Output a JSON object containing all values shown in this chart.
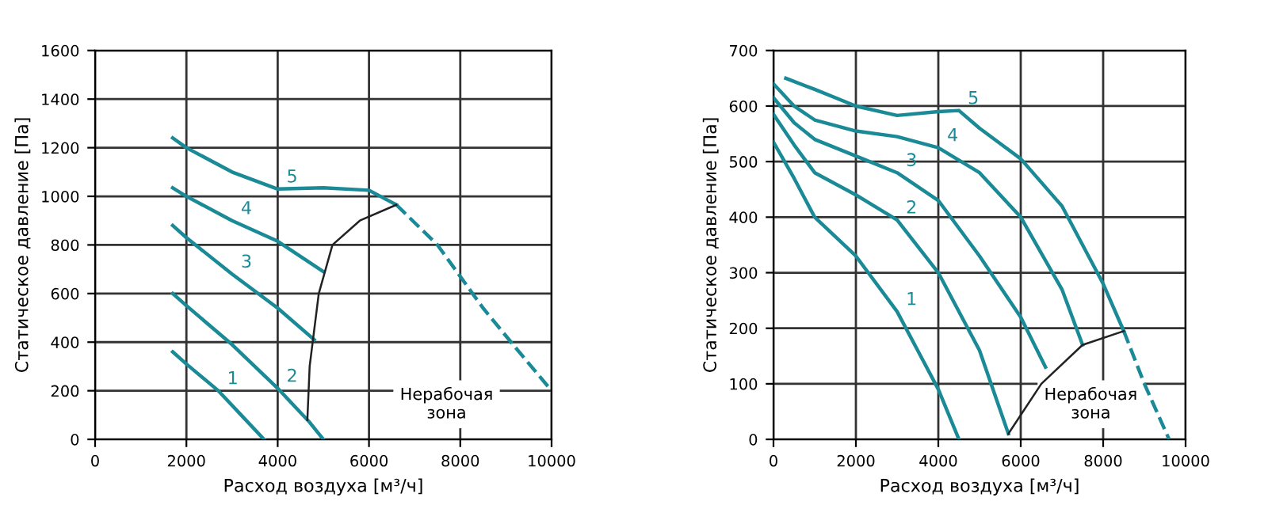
{
  "chart_data": [
    {
      "type": "line",
      "xlabel": "Расход воздуха [м³/ч]",
      "ylabel": "Статическое давление [Па]",
      "xlim": [
        0,
        10000
      ],
      "ylim": [
        0,
        1600
      ],
      "xticks": [
        0,
        2000,
        4000,
        6000,
        8000,
        10000
      ],
      "yticks": [
        0,
        200,
        400,
        600,
        800,
        1000,
        1200,
        1400,
        1600
      ],
      "grid": true,
      "legend": false,
      "annotations": [
        "Нерабочая\nзона"
      ],
      "series": [
        {
          "name": "1",
          "color": "#1a8a96",
          "x": [
            1700,
            2000,
            2700,
            3200,
            3700
          ],
          "values": [
            360,
            310,
            200,
            100,
            0
          ]
        },
        {
          "name": "2",
          "color": "#1a8a96",
          "x": [
            1700,
            2000,
            3000,
            4000,
            4700,
            5000
          ],
          "values": [
            600,
            550,
            390,
            210,
            70,
            0
          ]
        },
        {
          "name": "3",
          "color": "#1a8a96",
          "x": [
            1700,
            2000,
            3000,
            4000,
            4800
          ],
          "values": [
            880,
            830,
            680,
            540,
            410
          ]
        },
        {
          "name": "4",
          "color": "#1a8a96",
          "x": [
            1700,
            2000,
            3000,
            4000,
            5000
          ],
          "values": [
            1035,
            1000,
            900,
            815,
            690
          ]
        },
        {
          "name": "5",
          "color": "#1a8a96",
          "x": [
            1700,
            2000,
            3000,
            4000,
            5000,
            6000,
            6600
          ],
          "values": [
            1240,
            1200,
            1100,
            1030,
            1035,
            1025,
            965
          ]
        },
        {
          "color": "#1a8a96",
          "line_style": "dashed",
          "x": [
            6600,
            7500,
            8500,
            9200,
            10000
          ],
          "values": [
            965,
            800,
            540,
            380,
            200
          ]
        },
        {
          "color": "#222222",
          "x": [
            4650,
            4700,
            4900,
            5200,
            5800,
            6600
          ],
          "values": [
            80,
            300,
            600,
            800,
            900,
            965
          ]
        }
      ]
    },
    {
      "type": "line",
      "xlabel": "Расход воздуха [м³/ч]",
      "ylabel": "Статическое давление [Па]",
      "xlim": [
        0,
        10000
      ],
      "ylim": [
        0,
        700
      ],
      "xticks": [
        0,
        2000,
        4000,
        6000,
        8000,
        10000
      ],
      "yticks": [
        0,
        100,
        200,
        300,
        400,
        500,
        600,
        700
      ],
      "grid": true,
      "legend": false,
      "annotations": [
        "Нерабочая\nзона"
      ],
      "series": [
        {
          "name": "1",
          "color": "#1a8a96",
          "x": [
            0,
            500,
            1000,
            2000,
            3000,
            3500,
            4000,
            4500
          ],
          "values": [
            535,
            470,
            400,
            330,
            230,
            160,
            90,
            0
          ]
        },
        {
          "name": "2",
          "color": "#1a8a96",
          "x": [
            0,
            500,
            1000,
            2000,
            3000,
            4000,
            5000,
            5700
          ],
          "values": [
            585,
            530,
            480,
            440,
            395,
            300,
            160,
            10
          ]
        },
        {
          "name": "3",
          "color": "#1a8a96",
          "x": [
            0,
            500,
            1000,
            2000,
            3000,
            4000,
            5000,
            6000,
            6600
          ],
          "values": [
            615,
            570,
            540,
            510,
            480,
            430,
            330,
            220,
            130
          ]
        },
        {
          "name": "4",
          "color": "#1a8a96",
          "x": [
            0,
            500,
            1000,
            2000,
            3000,
            4000,
            5000,
            6000,
            7000,
            7500
          ],
          "values": [
            640,
            600,
            575,
            555,
            545,
            525,
            480,
            400,
            270,
            170
          ]
        },
        {
          "name": "5",
          "color": "#1a8a96",
          "x": [
            300,
            1000,
            2000,
            3000,
            4000,
            4500,
            5000,
            6000,
            7000,
            8000,
            8500
          ],
          "values": [
            650,
            630,
            600,
            583,
            590,
            592,
            560,
            505,
            420,
            280,
            195
          ]
        },
        {
          "color": "#1a8a96",
          "line_style": "dashed",
          "x": [
            8500,
            9000,
            9600
          ],
          "values": [
            195,
            100,
            0
          ]
        },
        {
          "color": "#222222",
          "x": [
            5700,
            6500,
            7500,
            8500
          ],
          "values": [
            10,
            100,
            170,
            195
          ]
        }
      ]
    }
  ]
}
